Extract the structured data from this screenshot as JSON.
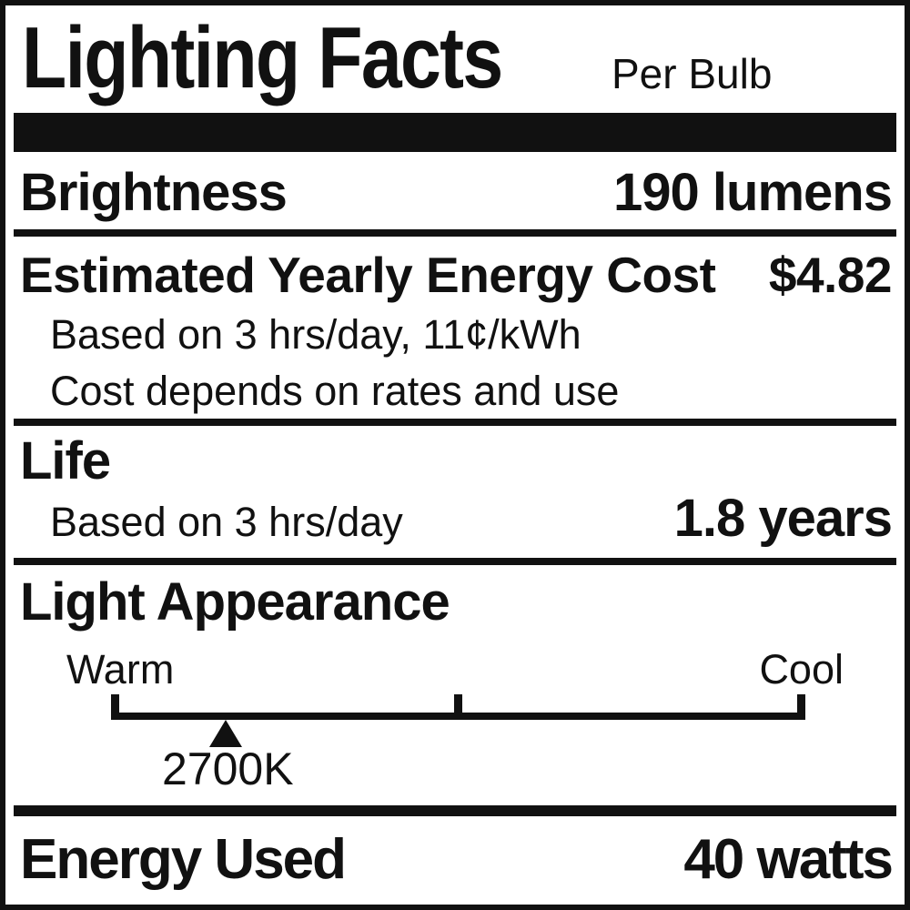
{
  "colors": {
    "ink": "#111111",
    "background": "#ffffff"
  },
  "header": {
    "title": "Lighting Facts",
    "qualifier": "Per Bulb"
  },
  "sections": {
    "brightness": {
      "label": "Brightness",
      "value": "190 lumens"
    },
    "energy_cost": {
      "label": "Estimated Yearly Energy Cost",
      "value": "$4.82",
      "basis_note": "Based on 3 hrs/day, 11¢/kWh",
      "disclaimer_note": "Cost depends on rates and use"
    },
    "life": {
      "label": "Life",
      "basis_note": "Based on 3 hrs/day",
      "value": "1.8 years"
    },
    "light_appearance": {
      "label": "Light Appearance",
      "scale": {
        "left_label": "Warm",
        "right_label": "Cool",
        "marker_value": "2700K",
        "marker_position_pct": 16.5
      }
    },
    "energy_used": {
      "label": "Energy Used",
      "value": "40 watts"
    }
  }
}
